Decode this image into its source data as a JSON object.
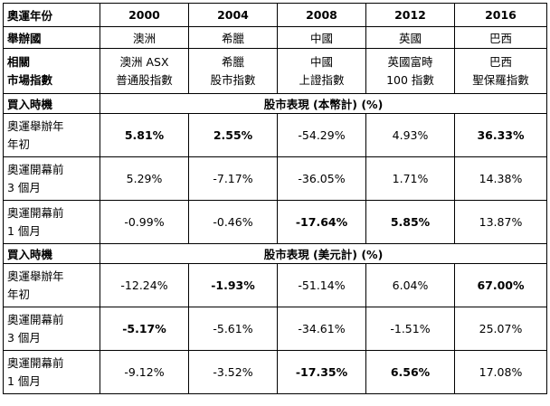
{
  "header": {
    "label": "奧運年份",
    "years": [
      "2000",
      "2004",
      "2008",
      "2012",
      "2016"
    ]
  },
  "host": {
    "label": "舉辦國",
    "values": [
      "澳洲",
      "希臘",
      "中國",
      "英國",
      "巴西"
    ]
  },
  "index": {
    "label_line1": "相關",
    "label_line2": "市場指數",
    "values": [
      [
        "澳洲 ASX",
        "普通股指數"
      ],
      [
        "希臘",
        "股市指數"
      ],
      [
        "中國",
        "上證指數"
      ],
      [
        "英國富時",
        "100 指數"
      ],
      [
        "巴西",
        "聖保羅指數"
      ]
    ]
  },
  "sections": [
    {
      "label": "買入時機",
      "title": "股市表現 (本幣計) (%)",
      "rows": [
        {
          "label1": "奧運舉辦年",
          "label2": "年初",
          "values": [
            "5.81%",
            "2.55%",
            "-54.29%",
            "4.93%",
            "36.33%"
          ],
          "bold": [
            true,
            true,
            false,
            false,
            true
          ]
        },
        {
          "label1": "奧運開幕前",
          "label2": "3 個月",
          "values": [
            "5.29%",
            "-7.17%",
            "-36.05%",
            "1.71%",
            "14.38%"
          ],
          "bold": [
            false,
            false,
            false,
            false,
            false
          ]
        },
        {
          "label1": "奧運開幕前",
          "label2": "1 個月",
          "values": [
            "-0.99%",
            "-0.46%",
            "-17.64%",
            "5.85%",
            "13.87%"
          ],
          "bold": [
            false,
            false,
            true,
            true,
            false
          ]
        }
      ]
    },
    {
      "label": "買入時機",
      "title": "股市表現 (美元計) (%)",
      "rows": [
        {
          "label1": "奧運舉辦年",
          "label2": "年初",
          "values": [
            "-12.24%",
            "-1.93%",
            "-51.14%",
            "6.04%",
            "67.00%"
          ],
          "bold": [
            false,
            true,
            false,
            false,
            true
          ]
        },
        {
          "label1": "奧運開幕前",
          "label2": "3 個月",
          "values": [
            "-5.17%",
            "-5.61%",
            "-34.61%",
            "-1.51%",
            "25.07%"
          ],
          "bold": [
            true,
            false,
            false,
            false,
            false
          ]
        },
        {
          "label1": "奧運開幕前",
          "label2": "1 個月",
          "values": [
            "-9.12%",
            "-3.52%",
            "-17.35%",
            "6.56%",
            "17.08%"
          ],
          "bold": [
            false,
            false,
            true,
            true,
            false
          ]
        }
      ]
    }
  ]
}
